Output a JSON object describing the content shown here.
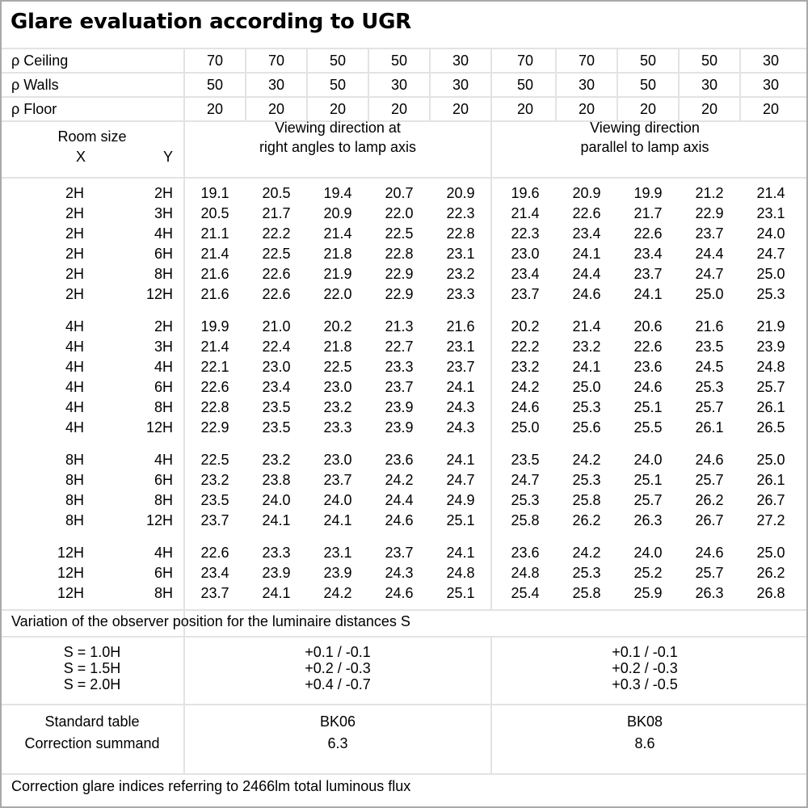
{
  "title": "Glare evaluation according to UGR",
  "reflectances": [
    {
      "label": "ρ Ceiling",
      "values": [
        "70",
        "70",
        "50",
        "50",
        "30",
        "70",
        "70",
        "50",
        "50",
        "30"
      ]
    },
    {
      "label": "ρ Walls",
      "values": [
        "50",
        "30",
        "50",
        "30",
        "30",
        "50",
        "30",
        "50",
        "30",
        "30"
      ]
    },
    {
      "label": "ρ Floor",
      "values": [
        "20",
        "20",
        "20",
        "20",
        "20",
        "20",
        "20",
        "20",
        "20",
        "20"
      ]
    }
  ],
  "header": {
    "room_size": "Room size",
    "x": "X",
    "y": "Y",
    "direction_right": [
      "Viewing direction at",
      "right angles to lamp axis"
    ],
    "direction_parallel": [
      "Viewing direction",
      "parallel to lamp axis"
    ]
  },
  "groups": [
    {
      "rows": [
        {
          "x": "2H",
          "y": "2H",
          "values": [
            "19.1",
            "20.5",
            "19.4",
            "20.7",
            "20.9",
            "19.6",
            "20.9",
            "19.9",
            "21.2",
            "21.4"
          ]
        },
        {
          "x": "2H",
          "y": "3H",
          "values": [
            "20.5",
            "21.7",
            "20.9",
            "22.0",
            "22.3",
            "21.4",
            "22.6",
            "21.7",
            "22.9",
            "23.1"
          ]
        },
        {
          "x": "2H",
          "y": "4H",
          "values": [
            "21.1",
            "22.2",
            "21.4",
            "22.5",
            "22.8",
            "22.3",
            "23.4",
            "22.6",
            "23.7",
            "24.0"
          ]
        },
        {
          "x": "2H",
          "y": "6H",
          "values": [
            "21.4",
            "22.5",
            "21.8",
            "22.8",
            "23.1",
            "23.0",
            "24.1",
            "23.4",
            "24.4",
            "24.7"
          ]
        },
        {
          "x": "2H",
          "y": "8H",
          "values": [
            "21.6",
            "22.6",
            "21.9",
            "22.9",
            "23.2",
            "23.4",
            "24.4",
            "23.7",
            "24.7",
            "25.0"
          ]
        },
        {
          "x": "2H",
          "y": "12H",
          "values": [
            "21.6",
            "22.6",
            "22.0",
            "22.9",
            "23.3",
            "23.7",
            "24.6",
            "24.1",
            "25.0",
            "25.3"
          ]
        }
      ]
    },
    {
      "rows": [
        {
          "x": "4H",
          "y": "2H",
          "values": [
            "19.9",
            "21.0",
            "20.2",
            "21.3",
            "21.6",
            "20.2",
            "21.4",
            "20.6",
            "21.6",
            "21.9"
          ]
        },
        {
          "x": "4H",
          "y": "3H",
          "values": [
            "21.4",
            "22.4",
            "21.8",
            "22.7",
            "23.1",
            "22.2",
            "23.2",
            "22.6",
            "23.5",
            "23.9"
          ]
        },
        {
          "x": "4H",
          "y": "4H",
          "values": [
            "22.1",
            "23.0",
            "22.5",
            "23.3",
            "23.7",
            "23.2",
            "24.1",
            "23.6",
            "24.5",
            "24.8"
          ]
        },
        {
          "x": "4H",
          "y": "6H",
          "values": [
            "22.6",
            "23.4",
            "23.0",
            "23.7",
            "24.1",
            "24.2",
            "25.0",
            "24.6",
            "25.3",
            "25.7"
          ]
        },
        {
          "x": "4H",
          "y": "8H",
          "values": [
            "22.8",
            "23.5",
            "23.2",
            "23.9",
            "24.3",
            "24.6",
            "25.3",
            "25.1",
            "25.7",
            "26.1"
          ]
        },
        {
          "x": "4H",
          "y": "12H",
          "values": [
            "22.9",
            "23.5",
            "23.3",
            "23.9",
            "24.3",
            "25.0",
            "25.6",
            "25.5",
            "26.1",
            "26.5"
          ]
        }
      ]
    },
    {
      "rows": [
        {
          "x": "8H",
          "y": "4H",
          "values": [
            "22.5",
            "23.2",
            "23.0",
            "23.6",
            "24.1",
            "23.5",
            "24.2",
            "24.0",
            "24.6",
            "25.0"
          ]
        },
        {
          "x": "8H",
          "y": "6H",
          "values": [
            "23.2",
            "23.8",
            "23.7",
            "24.2",
            "24.7",
            "24.7",
            "25.3",
            "25.1",
            "25.7",
            "26.1"
          ]
        },
        {
          "x": "8H",
          "y": "8H",
          "values": [
            "23.5",
            "24.0",
            "24.0",
            "24.4",
            "24.9",
            "25.3",
            "25.8",
            "25.7",
            "26.2",
            "26.7"
          ]
        },
        {
          "x": "8H",
          "y": "12H",
          "values": [
            "23.7",
            "24.1",
            "24.1",
            "24.6",
            "25.1",
            "25.8",
            "26.2",
            "26.3",
            "26.7",
            "27.2"
          ]
        }
      ]
    },
    {
      "rows": [
        {
          "x": "12H",
          "y": "4H",
          "values": [
            "22.6",
            "23.3",
            "23.1",
            "23.7",
            "24.1",
            "23.6",
            "24.2",
            "24.0",
            "24.6",
            "25.0"
          ]
        },
        {
          "x": "12H",
          "y": "6H",
          "values": [
            "23.4",
            "23.9",
            "23.9",
            "24.3",
            "24.8",
            "24.8",
            "25.3",
            "25.2",
            "25.7",
            "26.2"
          ]
        },
        {
          "x": "12H",
          "y": "8H",
          "values": [
            "23.7",
            "24.1",
            "24.2",
            "24.6",
            "25.1",
            "25.4",
            "25.8",
            "25.9",
            "26.3",
            "26.8"
          ]
        }
      ]
    }
  ],
  "variation": {
    "label": "Variation of the observer position for the luminaire distances S",
    "rows": [
      {
        "s": "S = 1.0H",
        "right": "+0.1 / -0.1",
        "parallel": "+0.1 / -0.1"
      },
      {
        "s": "S = 1.5H",
        "right": "+0.2 / -0.3",
        "parallel": "+0.2 / -0.3"
      },
      {
        "s": "S = 2.0H",
        "right": "+0.4 / -0.7",
        "parallel": "+0.3 / -0.5"
      }
    ]
  },
  "standard": {
    "table_label": "Standard table",
    "summand_label": "Correction summand",
    "right_table": "BK06",
    "right_summand": "6.3",
    "parallel_table": "BK08",
    "parallel_summand": "8.6"
  },
  "footer": "Correction glare indices referring to 2466lm total luminous flux"
}
